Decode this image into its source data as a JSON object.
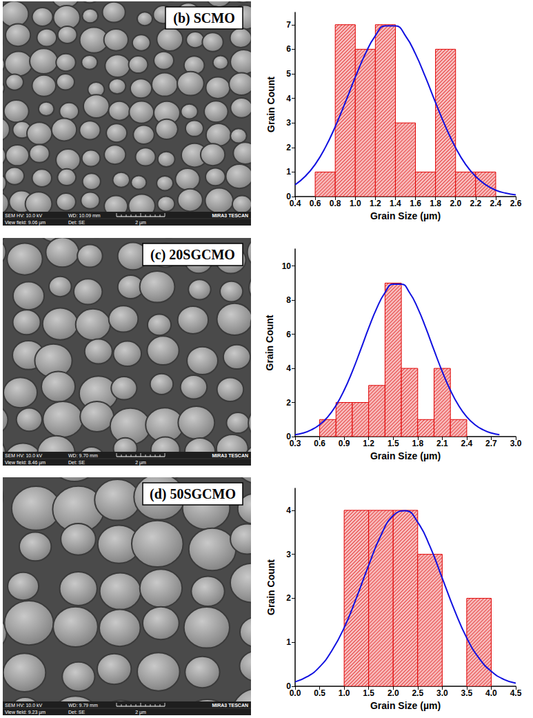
{
  "chart_data": [
    {
      "type": "histogram",
      "xlabel": "Grain Size (µm)",
      "ylabel": "Grain Count",
      "grid": false,
      "bins": [
        0.6,
        0.8,
        1.0,
        1.2,
        1.4,
        1.6,
        1.8,
        2.0,
        2.2,
        2.4
      ],
      "series": [
        {
          "type": "bar",
          "color": "#e00000",
          "values": [
            1,
            7,
            6,
            7,
            3,
            1,
            6,
            1,
            1
          ]
        },
        {
          "type": "line",
          "color": "#1010e0",
          "x": [
            0.4,
            0.5,
            0.6,
            0.7,
            0.8,
            0.9,
            1.0,
            1.1,
            1.2,
            1.3,
            1.4,
            1.5,
            1.6,
            1.7,
            1.8,
            1.9,
            2.0,
            2.1,
            2.2,
            2.3,
            2.4,
            2.5,
            2.6
          ],
          "values": [
            0.48,
            0.82,
            1.31,
            1.99,
            2.85,
            3.83,
            4.86,
            5.81,
            6.55,
            6.95,
            6.95,
            6.55,
            5.81,
            4.86,
            3.83,
            2.85,
            1.99,
            1.31,
            0.82,
            0.48,
            0.26,
            0.14,
            0.07
          ]
        }
      ],
      "xlim": [
        0.4,
        2.6
      ],
      "xticks": [
        0.4,
        0.6,
        0.8,
        {
          "value": 1,
          "label": "1.0"
        },
        1.2,
        1.4,
        1.6,
        1.8,
        {
          "value": 2,
          "label": "2.0"
        },
        2.2,
        2.4,
        2.6
      ],
      "ylim": [
        0,
        7.5
      ],
      "yticks": [
        0,
        1,
        2,
        3,
        4,
        5,
        6,
        7
      ]
    },
    {
      "type": "histogram",
      "xlabel": "Grain Size (µm)",
      "ylabel": "Grain Count",
      "grid": false,
      "bins": [
        0.6,
        0.8,
        1.0,
        1.2,
        1.4,
        1.6,
        1.8,
        2.0,
        2.2,
        2.4
      ],
      "series": [
        {
          "type": "bar",
          "color": "#e00000",
          "values": [
            1,
            2,
            2,
            3,
            9,
            4,
            1,
            4,
            1
          ]
        },
        {
          "type": "line",
          "color": "#1010e0",
          "x": [
            0.3,
            0.4,
            0.5,
            0.6,
            0.7,
            0.8,
            0.9,
            1.0,
            1.1,
            1.2,
            1.3,
            1.4,
            1.5,
            1.6,
            1.7,
            1.8,
            1.9,
            2.0,
            2.1,
            2.2,
            2.3,
            2.4,
            2.5,
            2.6,
            2.7,
            2.8
          ],
          "values": [
            0.11,
            0.21,
            0.4,
            0.7,
            1.16,
            1.83,
            2.72,
            3.82,
            5.07,
            6.36,
            7.54,
            8.44,
            8.94,
            8.94,
            8.44,
            7.54,
            6.36,
            5.07,
            3.82,
            2.72,
            1.83,
            1.16,
            0.7,
            0.4,
            0.21,
            0.11
          ]
        }
      ],
      "xlim": [
        0.3,
        3
      ],
      "xticks": [
        0.3,
        0.6,
        0.9,
        1.2,
        1.5,
        1.8,
        2.1,
        2.4,
        2.7,
        {
          "value": 3,
          "label": "3.0"
        }
      ],
      "ylim": [
        0,
        11
      ],
      "yticks": [
        0,
        2,
        4,
        6,
        8,
        10
      ]
    },
    {
      "type": "histogram",
      "xlabel": "Grain Size (µm)",
      "ylabel": "Grain Count",
      "grid": false,
      "bins": [
        1.0,
        1.5,
        2.0,
        2.5,
        3.0,
        3.5,
        4.0
      ],
      "series": [
        {
          "type": "bar",
          "color": "#e00000",
          "values": [
            4,
            4,
            4,
            3,
            0,
            2
          ]
        },
        {
          "type": "line",
          "color": "#1010e0",
          "x": [
            0,
            0.25,
            0.5,
            0.75,
            1.0,
            1.25,
            1.5,
            1.75,
            2.0,
            2.25,
            2.5,
            2.75,
            3.0,
            3.25,
            3.5,
            3.75,
            4.0,
            4.25,
            4.5
          ],
          "values": [
            0.1,
            0.22,
            0.44,
            0.81,
            1.33,
            2.01,
            2.75,
            3.43,
            3.88,
            3.99,
            3.73,
            3.18,
            2.46,
            1.73,
            1.1,
            0.64,
            0.34,
            0.16,
            0.07
          ]
        }
      ],
      "xlim": [
        0,
        4.5
      ],
      "xticks": [
        {
          "value": 0,
          "label": "0.0"
        },
        0.5,
        {
          "value": 1,
          "label": "1.0"
        },
        1.5,
        {
          "value": 2,
          "label": "2.0"
        },
        2.5,
        {
          "value": 3,
          "label": "3.0"
        },
        3.5,
        {
          "value": 4,
          "label": "4.0"
        },
        4.5
      ],
      "ylim": [
        0,
        4.5
      ],
      "yticks": [
        0,
        1,
        2,
        3,
        4
      ]
    }
  ],
  "sem_images": [
    {
      "label": "(b) SCMO",
      "hv": "SEM HV: 10.0 kV",
      "wd": "WD: 10.09 mm",
      "brand": "MIRA3 TESCAN",
      "view_field": "View field: 9.06 µm",
      "detector": "Det: SE",
      "scale": "2 µm"
    },
    {
      "label": "(c) 20SGCMO",
      "hv": "SEM HV: 10.0 kV",
      "wd": "WD: 9.70 mm",
      "brand": "MIRA3 TESCAN",
      "view_field": "View field: 8.46 µm",
      "detector": "Det: SE",
      "scale": "2 µm"
    },
    {
      "label": "(d) 50SGCMO",
      "hv": "SEM HV: 10.0 kV",
      "wd": "WD: 9.79 mm",
      "brand": "MIRA3 TESCAN",
      "view_field": "View field: 9.23 µm",
      "detector": "Det: SE",
      "scale": "2 µm"
    }
  ]
}
